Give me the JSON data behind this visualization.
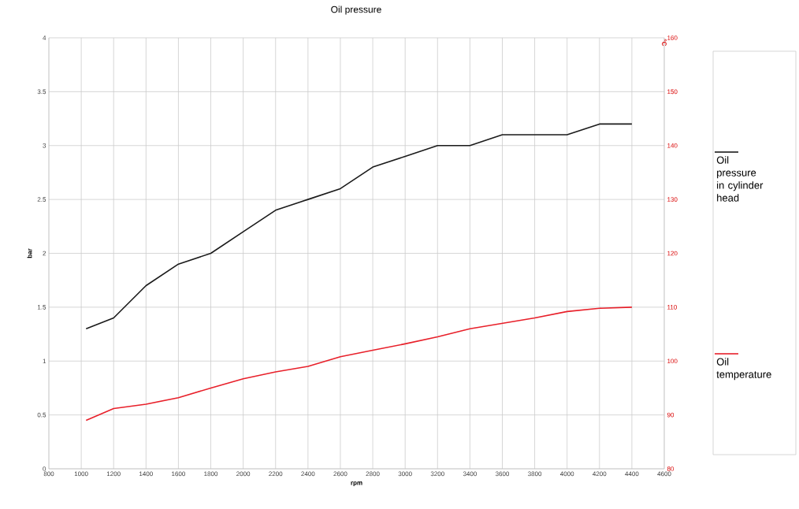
{
  "chart_data": {
    "type": "line",
    "title": "Oil pressure",
    "xlabel": "rpm",
    "ylabel": "bar",
    "y2label": "°C",
    "x": [
      1030,
      1200,
      1400,
      1600,
      1800,
      2000,
      2200,
      2400,
      2600,
      2800,
      3000,
      3200,
      3400,
      3600,
      3800,
      4000,
      4200,
      4400
    ],
    "series": [
      {
        "name": "Oil pressure in cylinder head",
        "color": "#1a1a1a",
        "values": [
          1.3,
          1.4,
          1.7,
          1.9,
          2.0,
          2.2,
          2.4,
          2.5,
          2.6,
          2.8,
          2.9,
          3.0,
          3.0,
          3.1,
          3.1,
          3.1,
          3.2,
          3.2
        ]
      },
      {
        "name": "Oil temperature",
        "color": "#e8202a",
        "axis": "y2",
        "values": [
          89,
          91.2,
          92,
          93.2,
          95,
          96.7,
          98,
          99,
          100.8,
          102,
          103.2,
          104.5,
          106,
          107,
          108,
          109.2,
          109.8,
          110
        ]
      }
    ],
    "xlim": [
      800,
      4600
    ],
    "xticks": [
      800,
      1000,
      1200,
      1400,
      1600,
      1800,
      2000,
      2200,
      2400,
      2600,
      2800,
      3000,
      3200,
      3400,
      3600,
      3800,
      4000,
      4200,
      4400,
      4600
    ],
    "ylim": [
      0,
      4
    ],
    "yticks": [
      0,
      0.5,
      1,
      1.5,
      2,
      2.5,
      3,
      3.5,
      4
    ],
    "y2lim": [
      80,
      160
    ],
    "y2ticks": [
      80,
      90,
      100,
      110,
      120,
      130,
      140,
      150,
      160
    ],
    "grid": true,
    "legend": "right",
    "marker": "none",
    "line_style": "solid"
  }
}
